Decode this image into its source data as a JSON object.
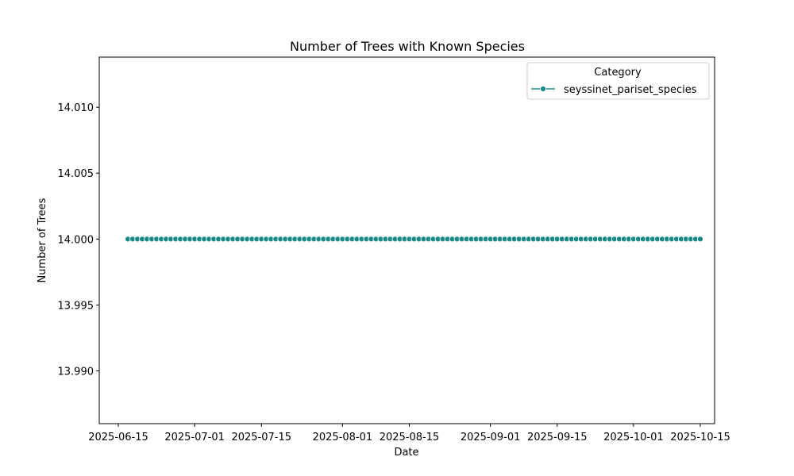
{
  "chart_data": {
    "type": "line",
    "title": "Number of Trees with Known Species",
    "xlabel": "Date",
    "ylabel": "Number of Trees",
    "xlim": [
      "2025-06-11",
      "2025-10-18"
    ],
    "ylim": [
      13.986,
      14.0138
    ],
    "x_start": "2025-06-17",
    "x_end": "2025-10-15",
    "x_ticks": [
      "2025-06-15",
      "2025-07-01",
      "2025-07-15",
      "2025-08-01",
      "2025-08-15",
      "2025-09-01",
      "2025-09-15",
      "2025-10-01",
      "2025-10-15"
    ],
    "y_ticks": [
      "13.990",
      "13.995",
      "14.000",
      "14.005",
      "14.010"
    ],
    "grid": false,
    "legend": {
      "title": "Category",
      "placement": "top-right"
    },
    "series": [
      {
        "name": "seyssinet_pariset_species",
        "color": "#1a8a87",
        "marker": "circle",
        "value": 14.0
      }
    ]
  }
}
